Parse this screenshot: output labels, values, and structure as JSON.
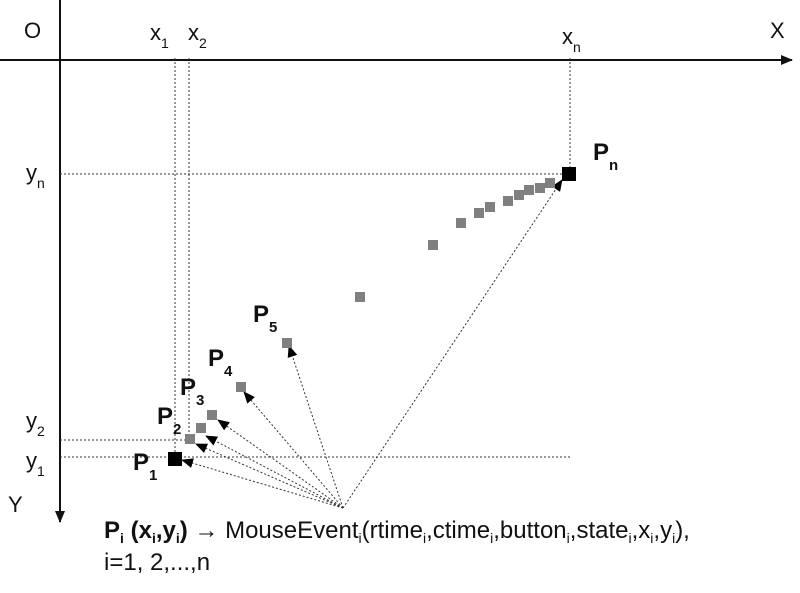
{
  "diagram": {
    "origin_label": "O",
    "x_axis_label": "X",
    "y_axis_label": "Y",
    "x_ticks": [
      {
        "base": "x",
        "sub": "1"
      },
      {
        "base": "x",
        "sub": "2"
      },
      {
        "base": "x",
        "sub": "n"
      }
    ],
    "y_ticks": [
      {
        "base": "y",
        "sub": "n"
      },
      {
        "base": "y",
        "sub": "2"
      },
      {
        "base": "y",
        "sub": "1"
      }
    ],
    "points": [
      {
        "base": "P",
        "sub": "1"
      },
      {
        "base": "P",
        "sub": "2"
      },
      {
        "base": "P",
        "sub": "3"
      },
      {
        "base": "P",
        "sub": "4"
      },
      {
        "base": "P",
        "sub": "5"
      },
      {
        "base": "P",
        "sub": "n"
      }
    ],
    "colors": {
      "axis": "#111111",
      "endpoint_marker": "#000000",
      "intermediate_marker": "#808080",
      "guide_line": "#333333"
    }
  },
  "formula": {
    "point": "P",
    "point_sub": "i",
    "open": " (",
    "x": "x",
    "x_sub": "i",
    "comma": ",",
    "y": "y",
    "y_sub": "i",
    "close": ")",
    "arrow": " → ",
    "event": "MouseEvent",
    "event_sub": "i",
    "args_open": "(",
    "args": [
      {
        "name": "rtime",
        "sub": "i",
        "sep": ","
      },
      {
        "name": "ctime",
        "sub": "i",
        "sep": ","
      },
      {
        "name": "button",
        "sub": "i",
        "sep": ","
      },
      {
        "name": "state",
        "sub": "i",
        "sep": ","
      },
      {
        "name": "x",
        "sub": "i",
        "sep": ","
      },
      {
        "name": "y",
        "sub": "i",
        "sep": ""
      }
    ],
    "args_close": "),",
    "range_line": "i=1, 2,...,n"
  }
}
